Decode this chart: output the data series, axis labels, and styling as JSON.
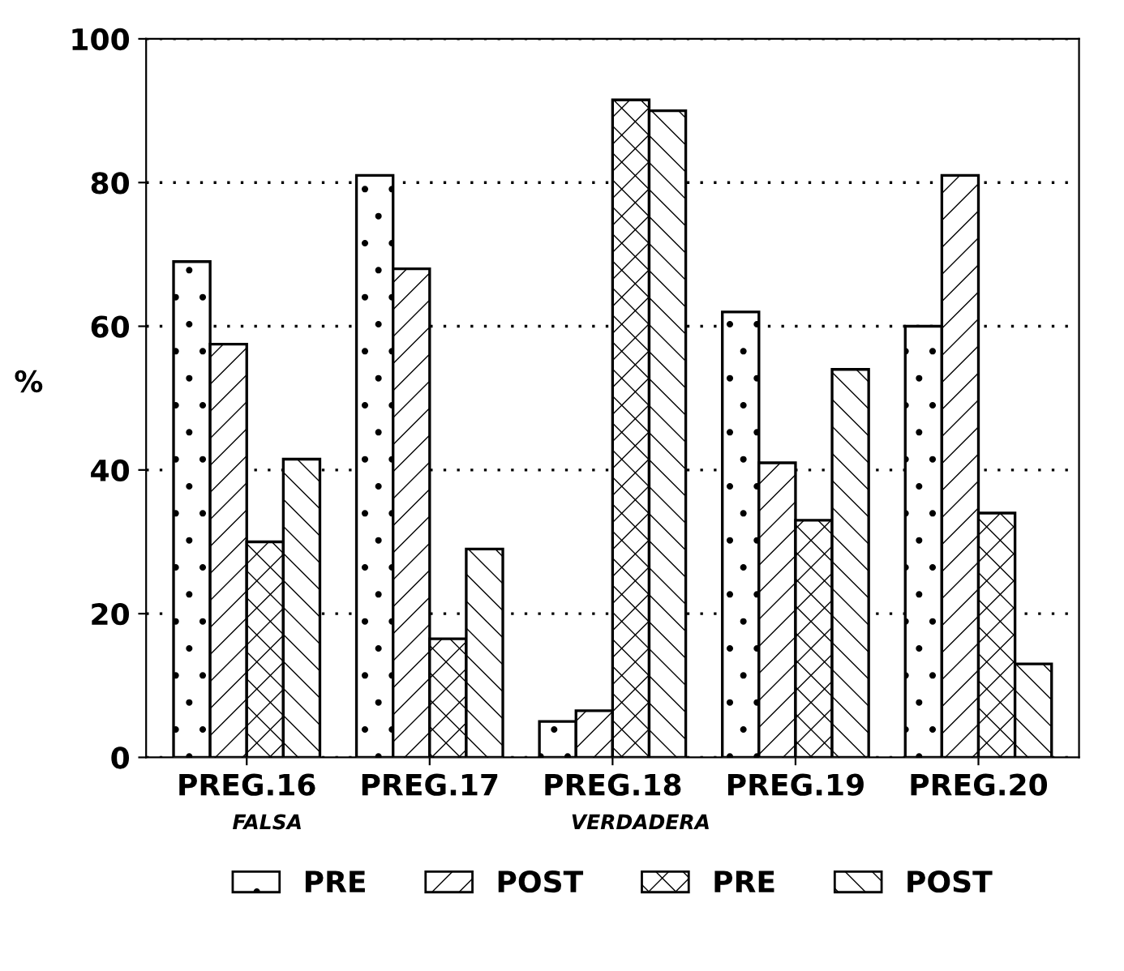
{
  "chart_data": {
    "type": "bar",
    "ylabel": "%",
    "categories": [
      "PREG.16",
      "PREG.17",
      "PREG.18",
      "PREG.19",
      "PREG.20"
    ],
    "series": [
      {
        "name": "PRE",
        "color": "#000000",
        "values": [
          69,
          81,
          5,
          62,
          60
        ]
      },
      {
        "name": "POST",
        "color": "#000000",
        "values": [
          57.5,
          68,
          6.5,
          41,
          81
        ]
      },
      {
        "name": "PRE",
        "color": "#000000",
        "values": [
          30,
          16.5,
          91.5,
          33,
          34
        ]
      },
      {
        "name": "POST",
        "color": "#000000",
        "values": [
          41.5,
          29,
          90,
          54,
          13
        ]
      }
    ],
    "annotations": [
      "FALSA",
      "VERDADERA"
    ],
    "ylim": [
      0,
      100
    ],
    "yticks": [
      0,
      20,
      40,
      60,
      80,
      100
    ],
    "grid": "y",
    "legend": "bottom"
  }
}
